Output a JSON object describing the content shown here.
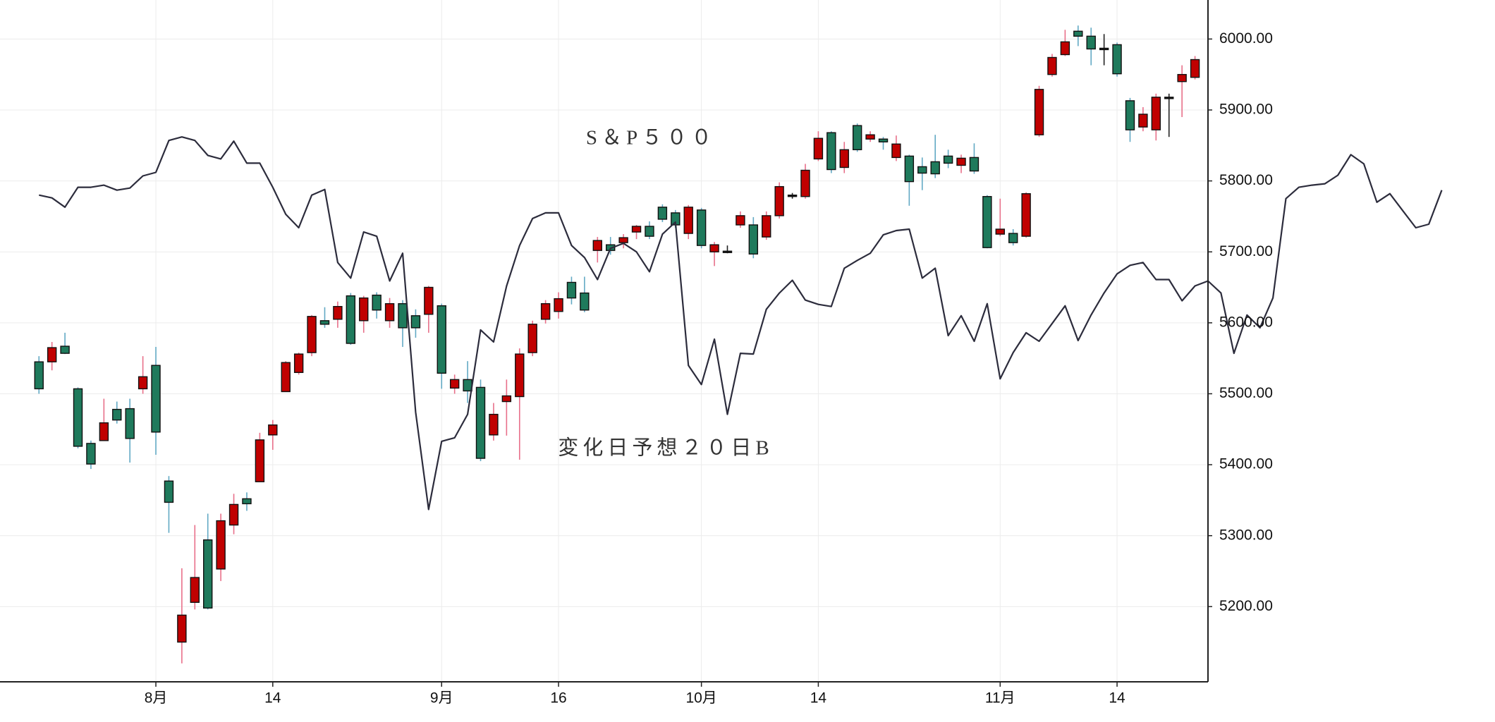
{
  "chart_data": {
    "type": "candlestick",
    "series": [
      {
        "name": "S＆P５００",
        "type": "candlestick",
        "up_color": "#c00000",
        "down_color": "#1f7a5c",
        "up_wick": "#e8708a",
        "down_wick": "#62a9c4",
        "open": [
          5545,
          5545,
          5567,
          5507,
          5430,
          5434,
          5478,
          5479,
          5507,
          5540,
          5377,
          5150,
          5206,
          5294,
          5253,
          5315,
          5352,
          5376,
          5442,
          5503,
          5530,
          5558,
          5603,
          5605,
          5638,
          5603,
          5639,
          5603,
          5627,
          5610,
          5612,
          5624,
          5508,
          5520,
          5509,
          5442,
          5489,
          5496,
          5558,
          5605,
          5616,
          5657,
          5642,
          5702,
          5710,
          5713,
          5728,
          5736,
          5763,
          5755,
          5726,
          5759,
          5700,
          5701,
          5738,
          5738,
          5721,
          5751,
          5780,
          5778,
          5831,
          5868,
          5819,
          5878,
          5859,
          5859,
          5833,
          5835,
          5820,
          5827,
          5835,
          5822,
          5833,
          5778,
          5725,
          5726,
          5722,
          5865,
          5950,
          5978,
          6011,
          6004,
          5987,
          5992,
          5913,
          5876,
          5872,
          5918,
          5940,
          5946
        ],
        "high": [
          5553,
          5573,
          5586,
          5509,
          5434,
          5493,
          5489,
          5493,
          5553,
          5566,
          5384,
          5254,
          5315,
          5331,
          5331,
          5359,
          5361,
          5445,
          5463,
          5546,
          5558,
          5611,
          5622,
          5630,
          5642,
          5638,
          5643,
          5635,
          5632,
          5619,
          5652,
          5627,
          5527,
          5546,
          5520,
          5487,
          5520,
          5564,
          5603,
          5632,
          5643,
          5665,
          5665,
          5721,
          5721,
          5725,
          5738,
          5743,
          5767,
          5759,
          5766,
          5762,
          5714,
          5709,
          5757,
          5749,
          5757,
          5798,
          5783,
          5824,
          5870,
          5870,
          5855,
          5881,
          5870,
          5862,
          5864,
          5837,
          5833,
          5865,
          5844,
          5837,
          5853,
          5780,
          5775,
          5732,
          5784,
          5934,
          5979,
          6013,
          6019,
          6016,
          6007,
          5995,
          5917,
          5904,
          5923,
          5923,
          5963,
          5976
        ],
        "low": [
          5500,
          5533,
          5556,
          5423,
          5394,
          5434,
          5458,
          5403,
          5500,
          5414,
          5304,
          5120,
          5196,
          5196,
          5236,
          5302,
          5335,
          5376,
          5421,
          5503,
          5527,
          5553,
          5593,
          5593,
          5569,
          5586,
          5606,
          5593,
          5566,
          5579,
          5586,
          5507,
          5500,
          5487,
          5405,
          5434,
          5441,
          5407,
          5553,
          5599,
          5606,
          5626,
          5615,
          5685,
          5696,
          5705,
          5718,
          5718,
          5742,
          5734,
          5718,
          5705,
          5680,
          5698,
          5734,
          5691,
          5717,
          5747,
          5775,
          5775,
          5828,
          5811,
          5811,
          5841,
          5855,
          5844,
          5828,
          5765,
          5787,
          5804,
          5818,
          5811,
          5810,
          5705,
          5722,
          5709,
          5720,
          5862,
          5947,
          5976,
          5990,
          5963,
          5963,
          5947,
          5855,
          5870,
          5857,
          5862,
          5890,
          5943
        ],
        "close": [
          5507,
          5565,
          5557,
          5426,
          5401,
          5459,
          5463,
          5437,
          5524,
          5446,
          5347,
          5188,
          5241,
          5198,
          5321,
          5344,
          5345,
          5435,
          5456,
          5544,
          5556,
          5609,
          5598,
          5623,
          5571,
          5635,
          5618,
          5627,
          5593,
          5593,
          5650,
          5529,
          5520,
          5504,
          5409,
          5471,
          5497,
          5556,
          5598,
          5627,
          5634,
          5635,
          5618,
          5716,
          5702,
          5720,
          5736,
          5722,
          5746,
          5738,
          5763,
          5709,
          5710,
          5701,
          5751,
          5697,
          5751,
          5792,
          5780,
          5815,
          5860,
          5816,
          5844,
          5844,
          5865,
          5855,
          5852,
          5799,
          5811,
          5810,
          5825,
          5832,
          5814,
          5706,
          5732,
          5713,
          5782,
          5929,
          5974,
          5996,
          6004,
          5986,
          5987,
          5951,
          5872,
          5894,
          5918,
          5918,
          5950,
          5971
        ]
      },
      {
        "name": "変化日予想２０日B",
        "type": "line",
        "color": "#2c2c3c",
        "values": [
          5780,
          5776,
          5763,
          5791,
          5791,
          5794,
          5787,
          5790,
          5807,
          5812,
          5857,
          5862,
          5857,
          5836,
          5831,
          5856,
          5825,
          5825,
          5791,
          5753,
          5734,
          5780,
          5788,
          5685,
          5663,
          5728,
          5722,
          5659,
          5698,
          5474,
          5337,
          5433,
          5438,
          5471,
          5590,
          5573,
          5652,
          5709,
          5747,
          5755,
          5755,
          5709,
          5692,
          5661,
          5705,
          5712,
          5700,
          5672,
          5725,
          5742,
          5540,
          5513,
          5577,
          5471,
          5557,
          5556,
          5619,
          5642,
          5660,
          5632,
          5626,
          5623,
          5677,
          5688,
          5698,
          5724,
          5730,
          5732,
          5663,
          5677,
          5582,
          5610,
          5574,
          5627,
          5521,
          5558,
          5586,
          5574,
          5599,
          5624,
          5575,
          5611,
          5642,
          5669,
          5681,
          5685,
          5661,
          5661,
          5631,
          5652,
          5659,
          5642,
          5557,
          5611,
          5593,
          5635,
          5775,
          5791,
          5794,
          5796,
          5808,
          5837,
          5824,
          5770,
          5782,
          5758,
          5734,
          5739,
          5787
        ]
      }
    ],
    "xlim": [
      -3,
      90
    ],
    "xticks": [
      {
        "value": 9,
        "label": "8月"
      },
      {
        "value": 18,
        "label": "14"
      },
      {
        "value": 31,
        "label": "9月"
      },
      {
        "value": 40,
        "label": "16"
      },
      {
        "value": 51,
        "label": "10月"
      },
      {
        "value": 60,
        "label": "14"
      },
      {
        "value": 74,
        "label": "11月"
      },
      {
        "value": 83,
        "label": "14"
      }
    ],
    "ylim": [
      5094,
      6055
    ],
    "yticks": [
      {
        "value": 5200,
        "label": "5200.00"
      },
      {
        "value": 5300,
        "label": "5300.00"
      },
      {
        "value": 5400,
        "label": "5400.00"
      },
      {
        "value": 5500,
        "label": "5500.00"
      },
      {
        "value": 5600,
        "label": "5600.00"
      },
      {
        "value": 5700,
        "label": "5700.00"
      },
      {
        "value": 5800,
        "label": "5800.00"
      },
      {
        "value": 5900,
        "label": "5900.00"
      },
      {
        "value": 6000,
        "label": "6000.00"
      }
    ],
    "grid": true
  }
}
